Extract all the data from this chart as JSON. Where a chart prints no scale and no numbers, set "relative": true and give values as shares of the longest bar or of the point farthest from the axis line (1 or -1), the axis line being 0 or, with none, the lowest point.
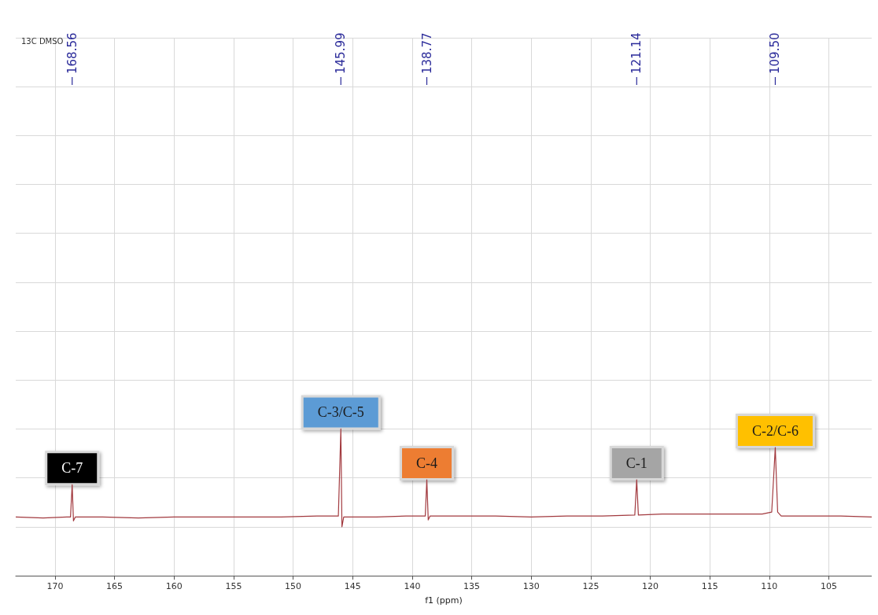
{
  "chart_data": {
    "type": "line",
    "title": "13C DMSO",
    "xlabel": "f1 (ppm)",
    "relative": true,
    "grid": true,
    "marker": "none",
    "xlim": [
      173.3,
      101.4
    ],
    "xticks": [
      170,
      165,
      160,
      155,
      150,
      145,
      140,
      135,
      130,
      125,
      120,
      115,
      110,
      105
    ],
    "series": [
      {
        "color": "#a23a3f",
        "x": [
          173.3,
          171,
          169,
          168.7,
          168.56,
          168.45,
          168.3,
          166,
          163,
          160,
          157,
          154,
          151,
          148,
          146.2,
          145.99,
          145.9,
          145.75,
          143,
          140.5,
          138.9,
          138.77,
          138.65,
          138.5,
          136,
          133,
          130,
          127,
          124,
          121.3,
          121.14,
          121.0,
          119,
          116,
          113,
          110.6,
          109.8,
          109.5,
          109.3,
          109.0,
          107,
          104,
          101.4
        ],
        "values": [
          0.1,
          0.09,
          0.1,
          0.1,
          0.43,
          0.06,
          0.1,
          0.1,
          0.09,
          0.1,
          0.1,
          0.1,
          0.1,
          0.11,
          0.11,
          1,
          0,
          0.1,
          0.1,
          0.11,
          0.11,
          0.48,
          0.07,
          0.11,
          0.11,
          0.11,
          0.1,
          0.11,
          0.11,
          0.12,
          0.48,
          0.12,
          0.13,
          0.13,
          0.13,
          0.13,
          0.15,
          0.81,
          0.15,
          0.11,
          0.11,
          0.11,
          0.1
        ]
      }
    ],
    "annotations": [
      {
        "text": "168.56",
        "x": 168.56
      },
      {
        "text": "145.99",
        "x": 145.99
      },
      {
        "text": "138.77",
        "x": 138.77
      },
      {
        "text": "121.14",
        "x": 121.14
      },
      {
        "text": "109.50",
        "x": 109.5
      },
      {
        "text": "C-7",
        "x": 168.56,
        "y": 0.43
      },
      {
        "text": "C-3/C-5",
        "x": 145.99,
        "y": 1
      },
      {
        "text": "C-4",
        "x": 138.77,
        "y": 0.48
      },
      {
        "text": "C-1",
        "x": 121.14,
        "y": 0.48
      },
      {
        "text": "C-2/C-6",
        "x": 109.5,
        "y": 0.81
      }
    ]
  }
}
